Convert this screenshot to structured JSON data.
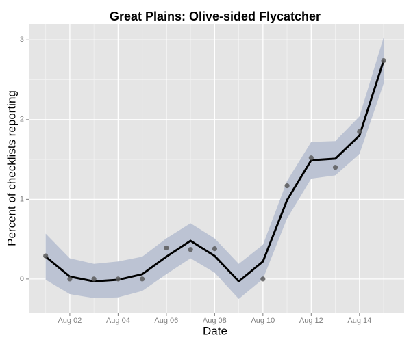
{
  "chart_data": {
    "type": "line",
    "title": "Great Plains: Olive-sided Flycatcher",
    "xlabel": "Date",
    "ylabel": "Percent of checklists reporting",
    "x": [
      1,
      2,
      3,
      4,
      5,
      6,
      7,
      8,
      9,
      10,
      11,
      12,
      13,
      14,
      15
    ],
    "xlim": [
      0.3,
      15.85
    ],
    "xticks": [
      {
        "value": 2,
        "label": "Aug 02"
      },
      {
        "value": 4,
        "label": "Aug 04"
      },
      {
        "value": 6,
        "label": "Aug 06"
      },
      {
        "value": 8,
        "label": "Aug 08"
      },
      {
        "value": 10,
        "label": "Aug 10"
      },
      {
        "value": 12,
        "label": "Aug 12"
      },
      {
        "value": 14,
        "label": "Aug 14"
      }
    ],
    "ylim": [
      -0.43,
      3.2
    ],
    "yticks": [
      0,
      1,
      2,
      3
    ],
    "grid": true,
    "minor_grid": true,
    "series": [
      {
        "kind": "band",
        "color": "#bcc3d3",
        "lower": [
          -0.01,
          -0.19,
          -0.24,
          -0.23,
          -0.15,
          0.06,
          0.26,
          0.08,
          -0.25,
          0.0,
          0.76,
          1.26,
          1.3,
          1.57,
          2.45
        ],
        "upper": [
          0.57,
          0.26,
          0.19,
          0.22,
          0.28,
          0.51,
          0.7,
          0.51,
          0.19,
          0.43,
          1.23,
          1.72,
          1.73,
          2.04,
          3.03
        ]
      },
      {
        "kind": "line",
        "color": "#000000",
        "values": [
          0.28,
          0.03,
          -0.03,
          -0.01,
          0.06,
          0.28,
          0.48,
          0.29,
          -0.03,
          0.22,
          0.99,
          1.49,
          1.51,
          1.8,
          2.74
        ]
      },
      {
        "kind": "points",
        "color": "#5a5a5a",
        "values": [
          0.29,
          0.0,
          0.0,
          0.0,
          0.0,
          0.39,
          0.37,
          0.38,
          null,
          0.0,
          1.17,
          1.52,
          1.4,
          1.85,
          2.74
        ]
      }
    ]
  }
}
